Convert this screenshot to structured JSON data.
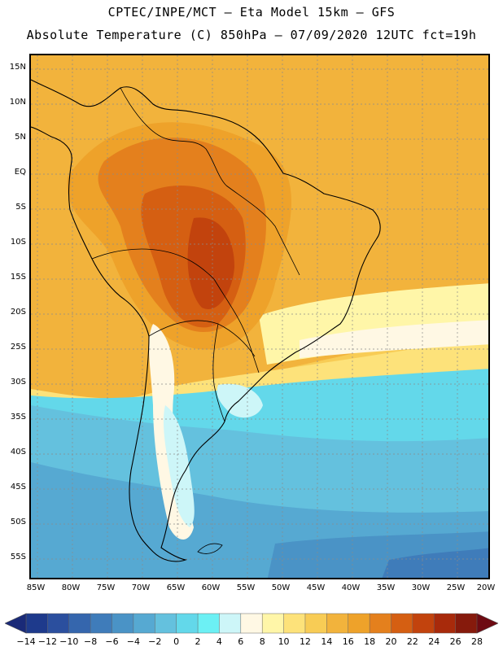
{
  "header": {
    "title_line1": "CPTEC/INPE/MCT –  Eta Model 15km – GFS",
    "title_line2": "Absolute Temperature (C) 850hPa – 07/09/2020 12UTC fct=19h"
  },
  "map": {
    "variable": "Absolute Temperature (C)",
    "level": "850hPa",
    "lat_labels": [
      "15N",
      "10N",
      "5N",
      "EQ",
      "5S",
      "10S",
      "15S",
      "20S",
      "25S",
      "30S",
      "35S",
      "40S",
      "45S",
      "50S",
      "55S"
    ],
    "lon_labels": [
      "85W",
      "80W",
      "75W",
      "70W",
      "65W",
      "60W",
      "55W",
      "50W",
      "45W",
      "40W",
      "35W",
      "30W",
      "25W",
      "20W"
    ],
    "land_color": "none",
    "coast_color": "#000000",
    "grid_color": "#8a8a8a"
  },
  "colorbar": {
    "labels": [
      "-14",
      "-12",
      "-10",
      "-8",
      "-6",
      "-4",
      "-2",
      "0",
      "2",
      "4",
      "6",
      "8",
      "10",
      "12",
      "14",
      "16",
      "18",
      "20",
      "22",
      "24",
      "26",
      "28"
    ],
    "left_arrow_color": "#1a2a78",
    "right_arrow_color": "#6e0a12",
    "colors": [
      "#1e3a8c",
      "#2b4f9e",
      "#3566ad",
      "#3f7cba",
      "#4a93c6",
      "#56a9d2",
      "#64c1de",
      "#63d8ea",
      "#6cf0f4",
      "#cdf6f8",
      "#fff8e4",
      "#fff6a8",
      "#fde27a",
      "#f8cc55",
      "#f2b33c",
      "#eea22a",
      "#e4801d",
      "#d55f12",
      "#c2430d",
      "#a82a0b",
      "#861a0c"
    ]
  }
}
